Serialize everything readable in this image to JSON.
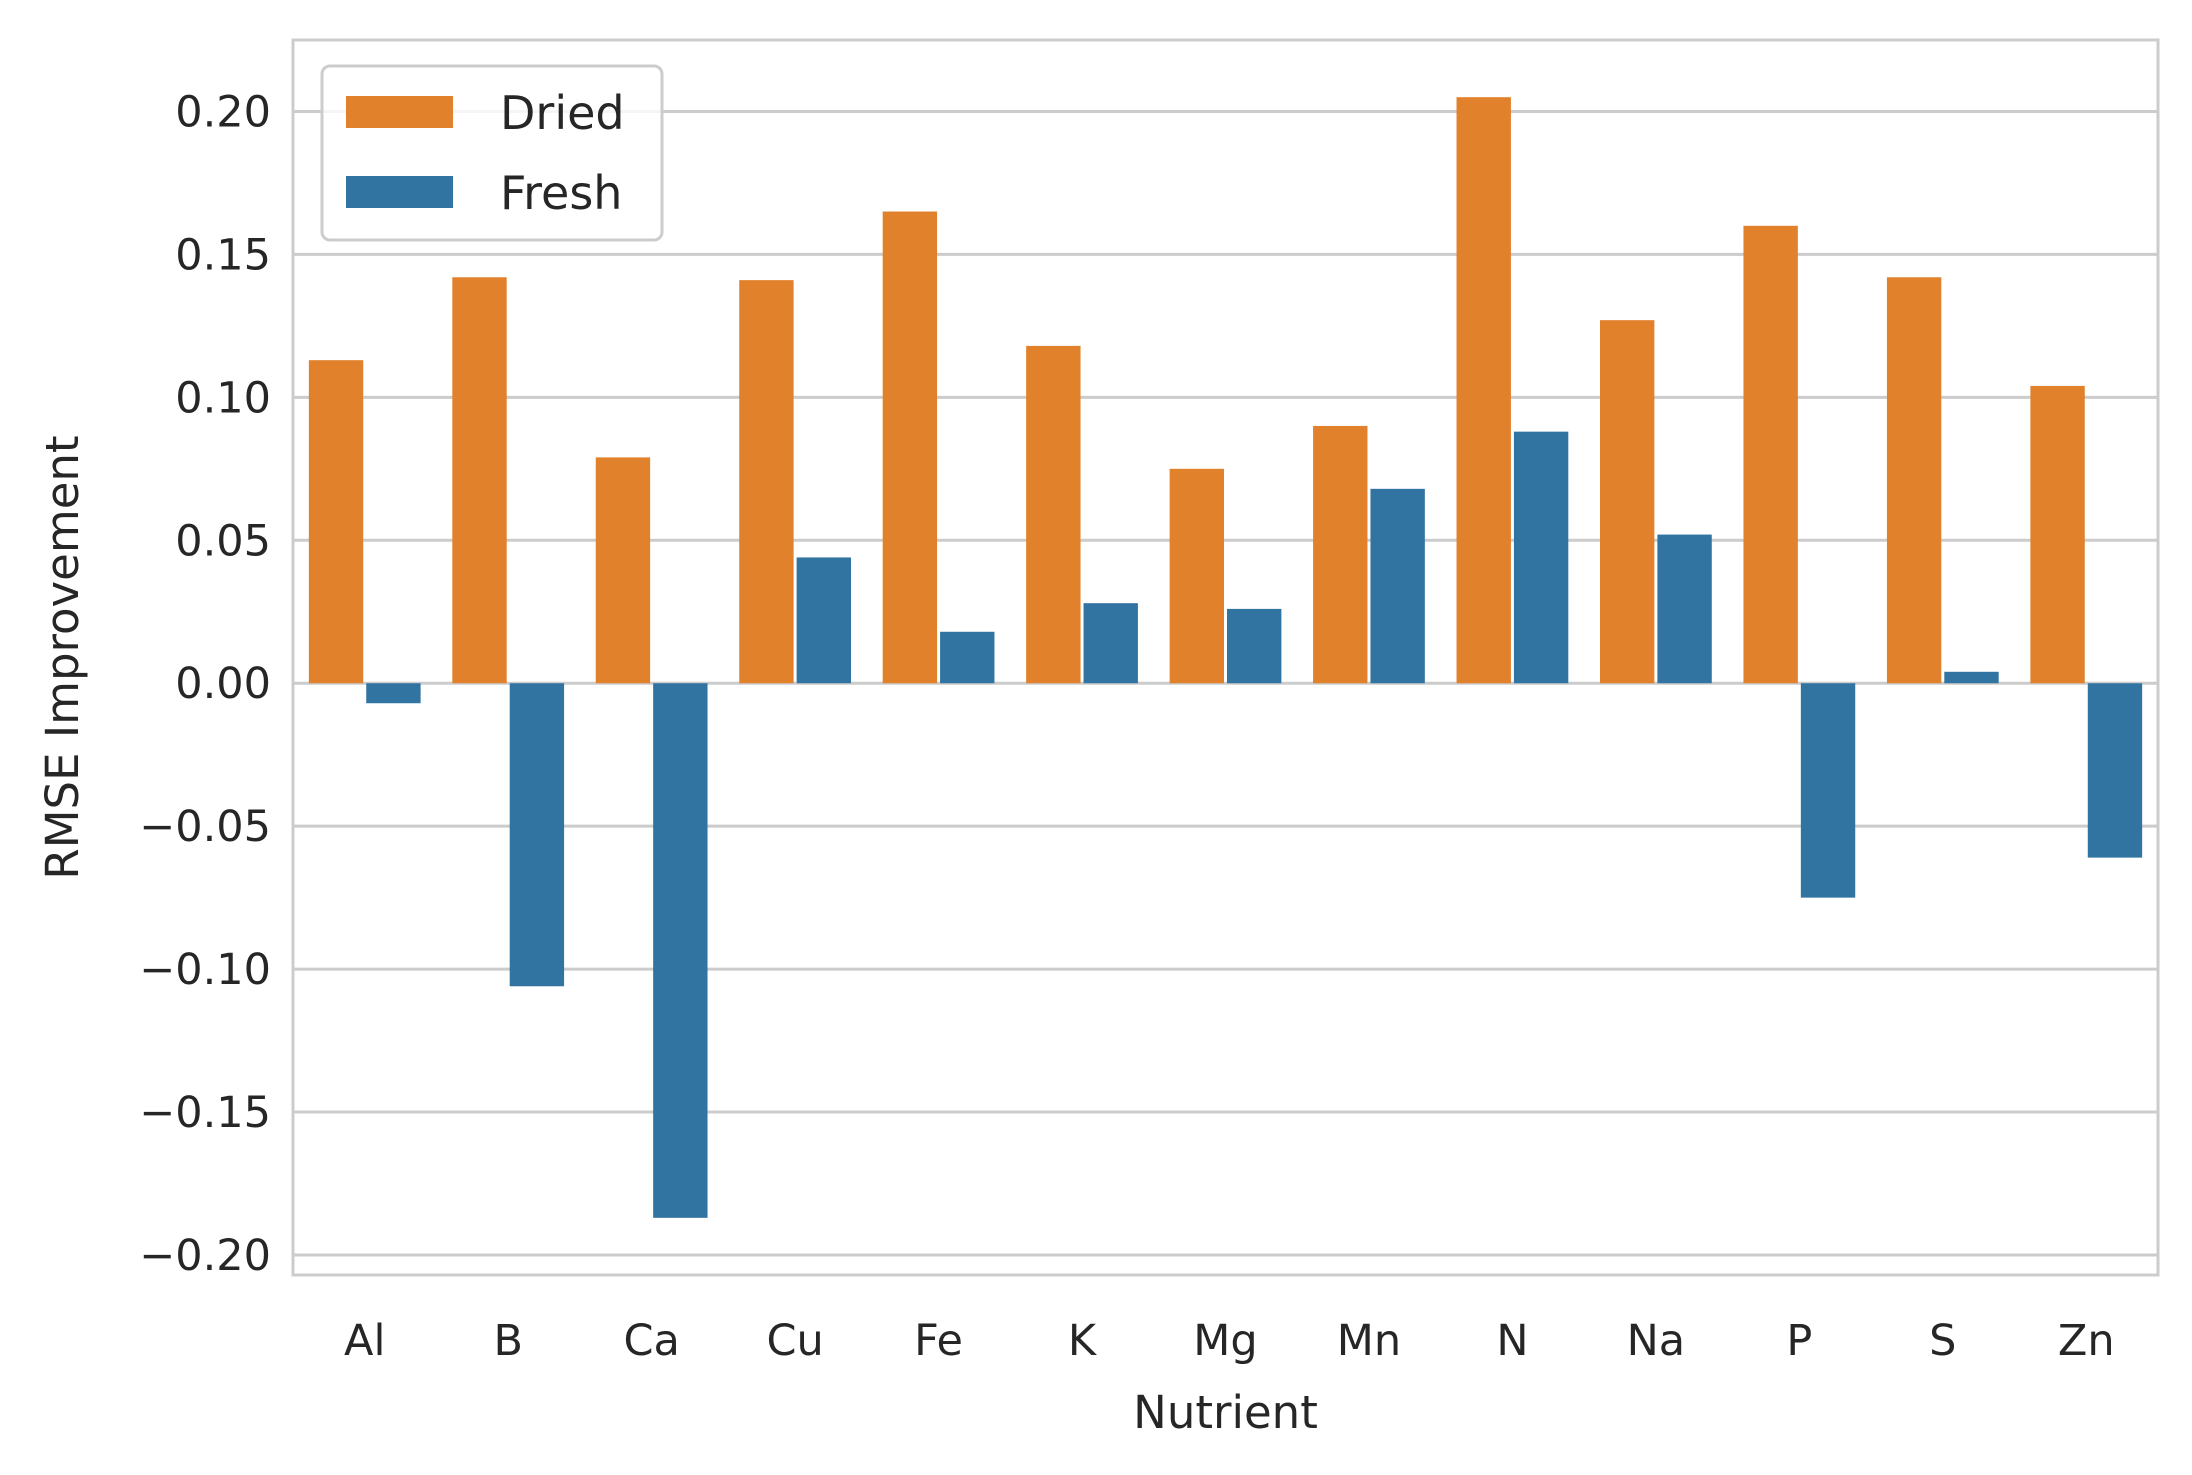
{
  "chart_data": {
    "type": "bar",
    "xlabel": "Nutrient",
    "ylabel": "RMSE Improvement",
    "categories": [
      "Al",
      "B",
      "Ca",
      "Cu",
      "Fe",
      "K",
      "Mg",
      "Mn",
      "N",
      "Na",
      "P",
      "S",
      "Zn"
    ],
    "series": [
      {
        "name": "Dried",
        "color": "#e1812c",
        "values": [
          0.113,
          0.142,
          0.079,
          0.141,
          0.165,
          0.118,
          0.075,
          0.09,
          0.205,
          0.127,
          0.16,
          0.142,
          0.104
        ]
      },
      {
        "name": "Fresh",
        "color": "#3274a1",
        "values": [
          -0.007,
          -0.106,
          -0.187,
          0.044,
          0.018,
          0.028,
          0.026,
          0.068,
          0.088,
          0.052,
          -0.075,
          0.004,
          -0.061
        ]
      }
    ],
    "ylim": [
      -0.207,
      0.225
    ],
    "yticks": [
      -0.2,
      -0.15,
      -0.1,
      -0.05,
      0.0,
      0.05,
      0.1,
      0.15,
      0.2
    ],
    "ytick_labels": [
      "−0.20",
      "−0.15",
      "−0.10",
      "−0.05",
      "0.00",
      "0.05",
      "0.10",
      "0.15",
      "0.20"
    ],
    "grid": "horizontal",
    "legend_position": "top-left"
  }
}
